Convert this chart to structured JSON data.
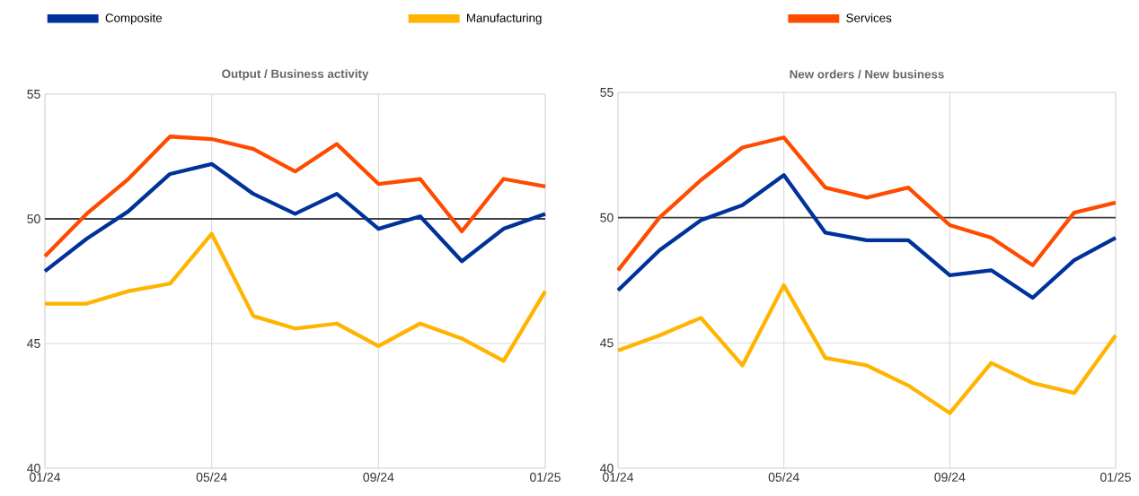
{
  "chart_data": [
    {
      "type": "line",
      "title": "Output / Business activity",
      "categories": [
        "01/24",
        null,
        null,
        null,
        "05/24",
        null,
        null,
        null,
        "09/24",
        null,
        null,
        null,
        "01/25"
      ],
      "ylim": [
        40,
        55
      ],
      "yticks": [
        40,
        45,
        50,
        55
      ],
      "grid": true,
      "legend": "top",
      "ref_lines": [
        {
          "axis": "y",
          "value": 50,
          "color": "#404040"
        }
      ],
      "series": [
        {
          "name": "Composite",
          "color": "#003299",
          "values": [
            47.9,
            49.2,
            50.3,
            51.8,
            52.2,
            51.0,
            50.2,
            51.0,
            49.6,
            50.1,
            48.3,
            49.6,
            50.2
          ]
        },
        {
          "name": "Manufacturing",
          "color": "#ffb400",
          "values": [
            46.6,
            46.6,
            47.1,
            47.4,
            49.4,
            46.1,
            45.6,
            45.8,
            44.9,
            45.8,
            45.2,
            44.3,
            47.1
          ]
        },
        {
          "name": "Services",
          "color": "#ff4b00",
          "values": [
            48.5,
            50.2,
            51.6,
            53.3,
            53.2,
            52.8,
            51.9,
            53.0,
            51.4,
            51.6,
            49.5,
            51.6,
            51.3
          ]
        }
      ]
    },
    {
      "type": "line",
      "title": "New orders / New business",
      "categories": [
        "01/24",
        null,
        null,
        null,
        "05/24",
        null,
        null,
        null,
        "09/24",
        null,
        null,
        null,
        "01/25"
      ],
      "ylim": [
        40,
        55
      ],
      "yticks": [
        40,
        45,
        50,
        55
      ],
      "grid": true,
      "ref_lines": [
        {
          "axis": "y",
          "value": 50,
          "color": "#404040"
        }
      ],
      "series": [
        {
          "color": "#003299",
          "values": [
            47.1,
            48.7,
            49.9,
            50.5,
            51.7,
            49.4,
            49.1,
            49.1,
            47.7,
            47.9,
            46.8,
            48.3,
            49.2
          ]
        },
        {
          "color": "#ffb400",
          "values": [
            44.7,
            45.3,
            46.0,
            44.1,
            47.3,
            44.4,
            44.1,
            43.3,
            42.2,
            44.2,
            43.4,
            43.0,
            45.3
          ]
        },
        {
          "color": "#ff4b00",
          "values": [
            47.9,
            50.0,
            51.5,
            52.8,
            53.2,
            51.2,
            50.8,
            51.2,
            49.7,
            49.2,
            48.1,
            50.2,
            50.6
          ]
        }
      ]
    }
  ]
}
